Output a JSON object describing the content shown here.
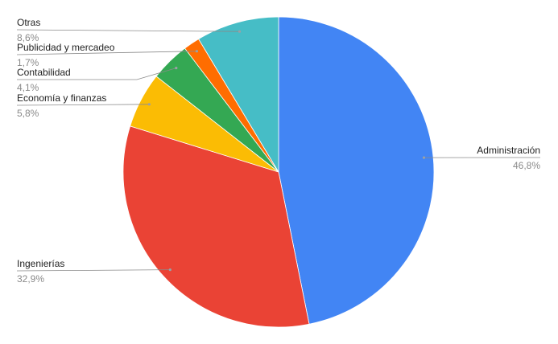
{
  "chart_data": {
    "type": "pie",
    "title": "",
    "slices": [
      {
        "label": "Administración",
        "pct_label": "46,8%",
        "value": 46.8,
        "color": "#4285f4"
      },
      {
        "label": "Ingenierías",
        "pct_label": "32,9%",
        "value": 32.9,
        "color": "#ea4335"
      },
      {
        "label": "Economía y finanzas",
        "pct_label": "5,8%",
        "value": 5.8,
        "color": "#fbbc04"
      },
      {
        "label": "Contabilidad",
        "pct_label": "4,1%",
        "value": 4.1,
        "color": "#34a853"
      },
      {
        "label": "Publicidad y mercadeo",
        "pct_label": "1,7%",
        "value": 1.7,
        "color": "#ff6d01"
      },
      {
        "label": "Otras",
        "pct_label": "8,6%",
        "value": 8.6,
        "color": "#46bdc6"
      }
    ],
    "legend": "none",
    "data_labels": "outside-with-leader-lines"
  }
}
